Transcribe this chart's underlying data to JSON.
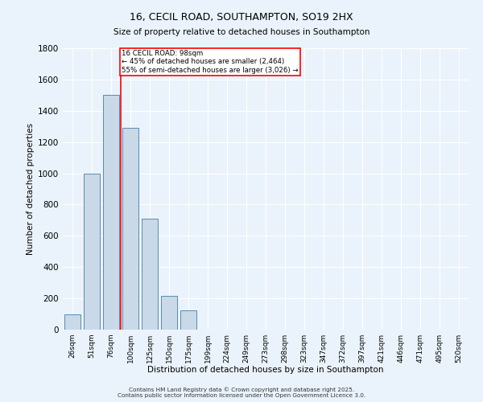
{
  "title_line1": "16, CECIL ROAD, SOUTHAMPTON, SO19 2HX",
  "title_line2": "Size of property relative to detached houses in Southampton",
  "xlabel": "Distribution of detached houses by size in Southampton",
  "ylabel": "Number of detached properties",
  "bar_labels": [
    "26sqm",
    "51sqm",
    "76sqm",
    "100sqm",
    "125sqm",
    "150sqm",
    "175sqm",
    "199sqm",
    "224sqm",
    "249sqm",
    "273sqm",
    "298sqm",
    "323sqm",
    "347sqm",
    "372sqm",
    "397sqm",
    "421sqm",
    "446sqm",
    "471sqm",
    "495sqm",
    "520sqm"
  ],
  "bar_values": [
    100,
    1000,
    1500,
    1290,
    710,
    215,
    125,
    0,
    0,
    0,
    0,
    0,
    0,
    0,
    0,
    0,
    0,
    0,
    0,
    0,
    0
  ],
  "bar_color": "#c9d9e8",
  "bar_edge_color": "#5a8ab0",
  "vline_color": "red",
  "annotation_title": "16 CECIL ROAD: 98sqm",
  "annotation_line1": "← 45% of detached houses are smaller (2,464)",
  "annotation_line2": "55% of semi-detached houses are larger (3,026) →",
  "annotation_box_color": "white",
  "annotation_box_edge_color": "red",
  "ylim": [
    0,
    1800
  ],
  "yticks": [
    0,
    200,
    400,
    600,
    800,
    1000,
    1200,
    1400,
    1600,
    1800
  ],
  "background_color": "#eaf3fb",
  "grid_color": "#ffffff",
  "footnote1": "Contains HM Land Registry data © Crown copyright and database right 2025.",
  "footnote2": "Contains public sector information licensed under the Open Government Licence 3.0."
}
